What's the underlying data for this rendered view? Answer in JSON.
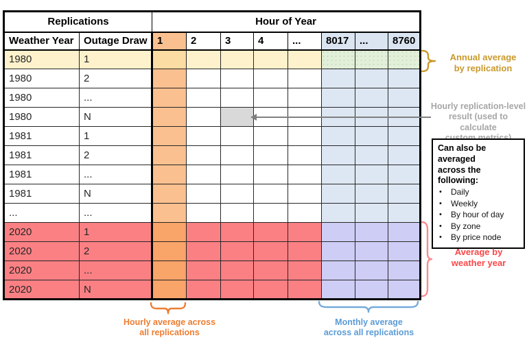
{
  "table": {
    "header": {
      "replications_label": "Replications",
      "hour_of_year_label": "Hour of Year",
      "weather_year_label": "Weather Year",
      "outage_draw_label": "Outage Draw",
      "hour_columns": [
        "1",
        "2",
        "3",
        "4",
        "...",
        "8017",
        "...",
        "8760"
      ]
    },
    "rows": [
      {
        "weather_year": "1980",
        "outage_draw": "1",
        "type": "annual"
      },
      {
        "weather_year": "1980",
        "outage_draw": "2",
        "type": "normal"
      },
      {
        "weather_year": "1980",
        "outage_draw": "...",
        "type": "normal"
      },
      {
        "weather_year": "1980",
        "outage_draw": "N",
        "type": "normal",
        "gray_cell_col": 2
      },
      {
        "weather_year": "1981",
        "outage_draw": "1",
        "type": "normal"
      },
      {
        "weather_year": "1981",
        "outage_draw": "2",
        "type": "normal"
      },
      {
        "weather_year": "1981",
        "outage_draw": "...",
        "type": "normal"
      },
      {
        "weather_year": "1981",
        "outage_draw": "N",
        "type": "normal"
      },
      {
        "weather_year": "...",
        "outage_draw": "...",
        "type": "normal"
      },
      {
        "weather_year": "2020",
        "outage_draw": "1",
        "type": "weather"
      },
      {
        "weather_year": "2020",
        "outage_draw": "2",
        "type": "weather"
      },
      {
        "weather_year": "2020",
        "outage_draw": "...",
        "type": "weather"
      },
      {
        "weather_year": "2020",
        "outage_draw": "N",
        "type": "weather"
      }
    ]
  },
  "annotations": {
    "annual_average": "Annual average\nby replication",
    "hourly_result": "Hourly replication-level\nresult (used to calculate\ncustom metrics)",
    "average_by_weather_year": "Average by\nweather year",
    "hourly_average": "Hourly average across\nall replications",
    "monthly_average": "Monthly average\nacross all replications"
  },
  "averaging_box": {
    "title": "Can also be averaged\nacross the following:",
    "items": [
      "Daily",
      "Weekly",
      "By hour of day",
      "By zone",
      "By price node"
    ]
  },
  "colors": {
    "row_yellow": "#FDF2CC",
    "hour1_annual": "#FBDCA2",
    "hour1_orange": "#FAC08F",
    "hour1_weather": "#F9A469",
    "annual_green": "#E2EFD9",
    "annual_green_dot": "#C5DDBA",
    "monthly_blue": "#DDE7F3",
    "header_blue": "#DAE5F1",
    "monthly_purple": "#CECDF5",
    "weather_red": "#FB8084",
    "gray_cell": "#D9D9D9",
    "gold": "#C9992B",
    "gray_text": "#A6A6A6",
    "arrow_gray": "#7f7f7f",
    "orange_text": "#ED7D31",
    "blue_text": "#5B9BD5",
    "red_text": "#FB4648",
    "red_brace": "#F98A8D"
  }
}
